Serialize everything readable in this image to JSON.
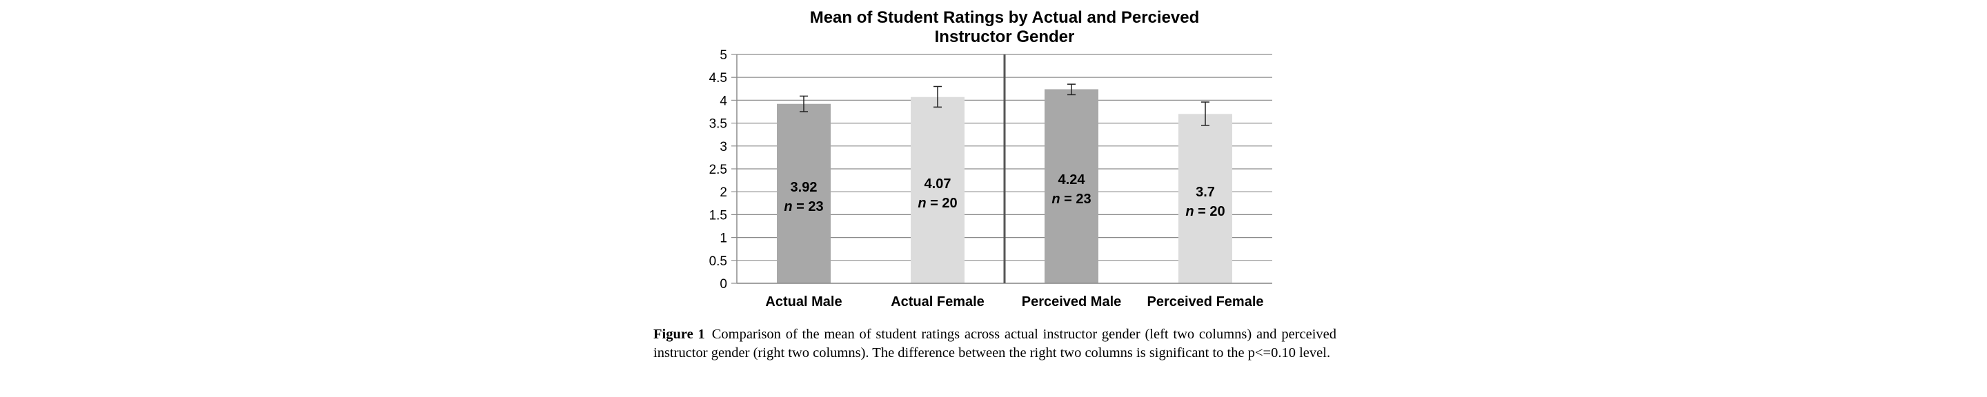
{
  "chart_data": {
    "type": "bar",
    "title": [
      "Mean of Student Ratings by Actual and Percieved",
      "Instructor Gender"
    ],
    "categories": [
      "Actual Male",
      "Actual Female",
      "Perceived Male",
      "Perceived Female"
    ],
    "values": [
      3.92,
      4.07,
      4.24,
      3.7
    ],
    "error_low": [
      3.75,
      3.85,
      4.12,
      3.45
    ],
    "error_high": [
      4.09,
      4.3,
      4.35,
      3.96
    ],
    "value_labels": [
      "3.92",
      "4.07",
      "4.24",
      "3.7"
    ],
    "n_labels": [
      "n = 23",
      "n = 20",
      "n = 23",
      "n = 20"
    ],
    "bar_colors": [
      "#a8a8a8",
      "#dcdcdc",
      "#a8a8a8",
      "#dcdcdc"
    ],
    "ylim": [
      0,
      5
    ],
    "yticks": [
      "0",
      "0.5",
      "1",
      "1.5",
      "2",
      "2.5",
      "3",
      "3.5",
      "4",
      "4.5",
      "5"
    ],
    "grid": true,
    "group_divider_after_index": 1,
    "xlabel": "",
    "ylabel": ""
  },
  "caption": {
    "label": "Figure 1",
    "text": "Comparison of the mean of student ratings across actual instructor gender (left two columns) and perceived instructor gender (right two columns). The difference between the right two columns is significant to the p<=0.10 level."
  }
}
